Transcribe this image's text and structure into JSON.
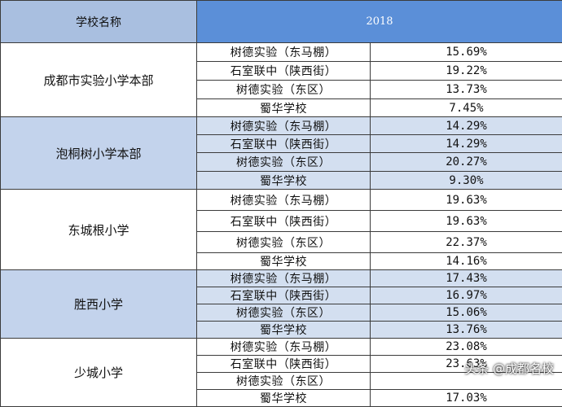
{
  "table": {
    "header": {
      "col1": "学校名称",
      "col2": "2018"
    },
    "groups": [
      {
        "school": "成都市实验小学本部",
        "shade": "white",
        "rows": [
          {
            "peer": "树德实验（东马棚）",
            "rate": "15.69%"
          },
          {
            "peer": "石室联中（陕西街）",
            "rate": "19.22%"
          },
          {
            "peer": "树德实验（东区）",
            "rate": "13.73%"
          },
          {
            "peer": "蜀华学校",
            "rate": "7.45%"
          }
        ]
      },
      {
        "school": "泡桐树小学本部",
        "shade": "blue",
        "rows": [
          {
            "peer": "树德实验（东马棚）",
            "rate": "14.29%"
          },
          {
            "peer": "石室联中（陕西街）",
            "rate": "14.29%"
          },
          {
            "peer": "树德实验（东区）",
            "rate": "20.27%"
          },
          {
            "peer": "蜀华学校",
            "rate": "9.30%"
          }
        ]
      },
      {
        "school": "东城根小学",
        "shade": "white",
        "rows": [
          {
            "peer": "树德实验（东马棚）",
            "rate": "19.63%"
          },
          {
            "peer": "石室联中（陕西街）",
            "rate": "19.63%"
          },
          {
            "peer": "树德实验（东区）",
            "rate": "22.37%"
          },
          {
            "peer": "蜀华学校",
            "rate": "14.16%"
          }
        ]
      },
      {
        "school": "胜西小学",
        "shade": "blue",
        "rows": [
          {
            "peer": "树德实验（东马棚）",
            "rate": "17.43%"
          },
          {
            "peer": "石室联中（陕西街）",
            "rate": "16.97%"
          },
          {
            "peer": "树德实验（东区）",
            "rate": "15.06%"
          },
          {
            "peer": "蜀华学校",
            "rate": "13.76%"
          }
        ]
      },
      {
        "school": "少城小学",
        "shade": "white",
        "rows": [
          {
            "peer": "树德实验（东马棚）",
            "rate": "23.08%"
          },
          {
            "peer": "石室联中（陕西街）",
            "rate": "23.63%"
          },
          {
            "peer": "树德实验（东区）",
            "rate": ""
          },
          {
            "peer": "蜀华学校",
            "rate": "17.03%"
          }
        ]
      }
    ]
  },
  "watermark": "头条 @成都名校"
}
